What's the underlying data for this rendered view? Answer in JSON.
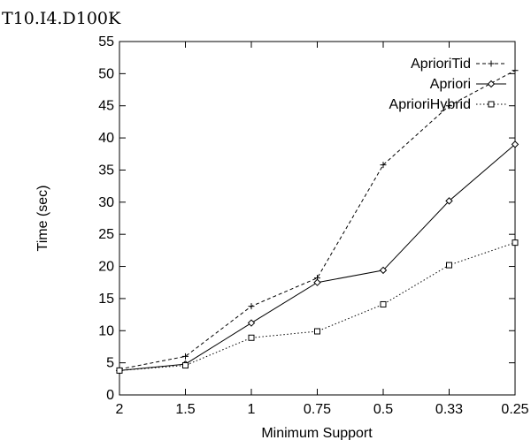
{
  "chart_data": {
    "type": "line",
    "title": "T10.I4.D100K",
    "xlabel": "Minimum Support",
    "ylabel": "Time (sec)",
    "categories": [
      "2",
      "1.5",
      "1",
      "0.75",
      "0.5",
      "0.33",
      "0.25"
    ],
    "ylim": [
      0,
      55
    ],
    "yticks": [
      0,
      5,
      10,
      15,
      20,
      25,
      30,
      35,
      40,
      45,
      50,
      55
    ],
    "grid": false,
    "legend_position": "top-right",
    "series": [
      {
        "name": "AprioriTid",
        "marker": "plus",
        "dash": "dashed",
        "values": [
          4,
          6,
          13.8,
          18.2,
          35.8,
          45,
          50.5
        ]
      },
      {
        "name": "Apriori",
        "marker": "diamond",
        "dash": "solid",
        "values": [
          3.8,
          4.8,
          11.2,
          17.5,
          19.4,
          30.2,
          39
        ]
      },
      {
        "name": "AprioriHybrid",
        "marker": "square",
        "dash": "dotted",
        "values": [
          3.8,
          4.6,
          8.9,
          9.9,
          14.1,
          20.2,
          23.7
        ]
      }
    ]
  }
}
